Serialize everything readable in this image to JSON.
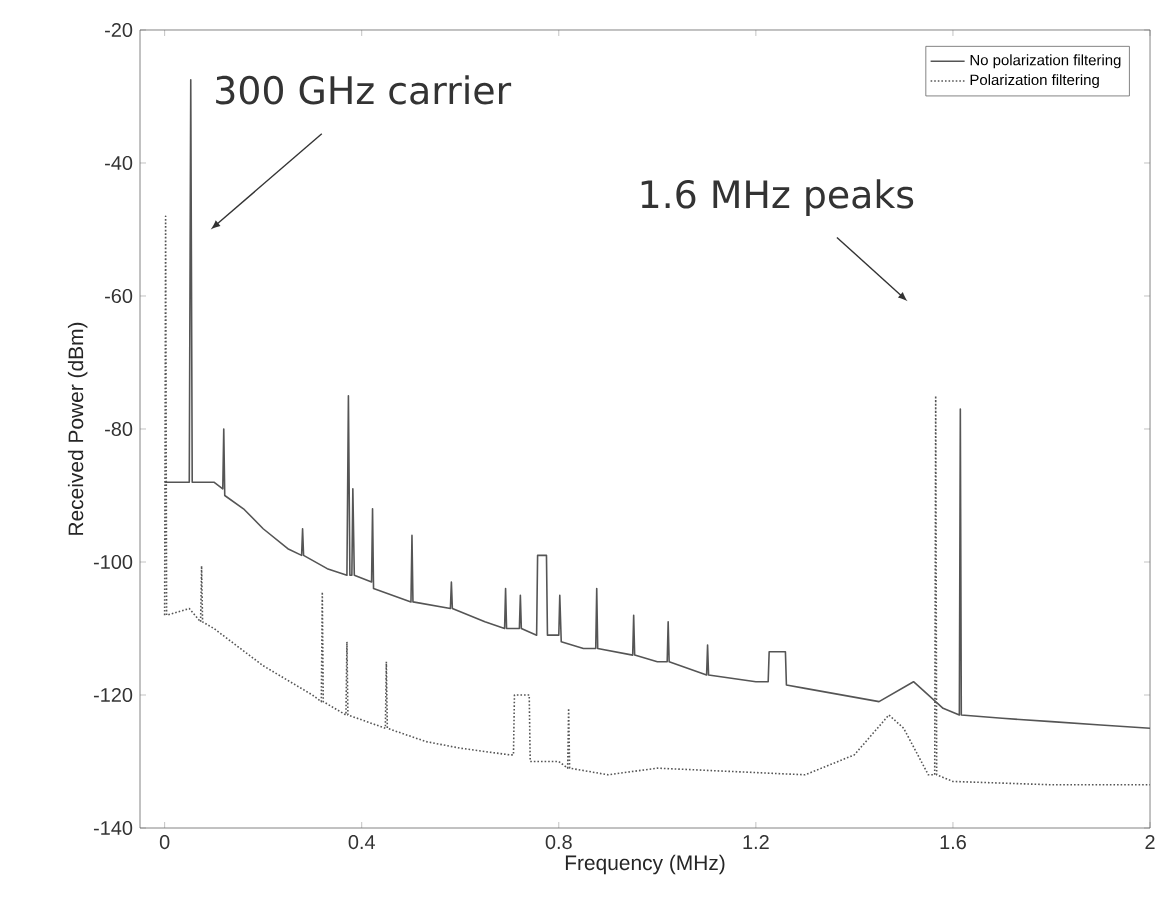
{
  "chart_data": {
    "type": "line",
    "xlabel": "Frequency (MHz)",
    "ylabel": "Received Power (dBm)",
    "xlim": [
      -0.05,
      2
    ],
    "ylim": [
      -140,
      -20
    ],
    "xticks": [
      0,
      0.4,
      0.8,
      1.2,
      1.6,
      2
    ],
    "yticks": [
      -140,
      -120,
      -100,
      -80,
      -60,
      -40,
      -20
    ],
    "grid": false,
    "legend": "top right",
    "marker": "none",
    "series": [
      {
        "name": "No polarization filtering",
        "color": "#555555",
        "line_style": "solid",
        "x": [
          0.0,
          0.05,
          0.053,
          0.056,
          0.1,
          0.118,
          0.12,
          0.122,
          0.16,
          0.2,
          0.25,
          0.278,
          0.28,
          0.282,
          0.33,
          0.37,
          0.373,
          0.376,
          0.38,
          0.382,
          0.385,
          0.42,
          0.422,
          0.424,
          0.5,
          0.502,
          0.504,
          0.58,
          0.582,
          0.584,
          0.65,
          0.69,
          0.692,
          0.694,
          0.72,
          0.722,
          0.724,
          0.755,
          0.757,
          0.775,
          0.777,
          0.8,
          0.802,
          0.805,
          0.85,
          0.875,
          0.877,
          0.879,
          0.95,
          0.952,
          0.954,
          1.0,
          1.02,
          1.022,
          1.024,
          1.1,
          1.102,
          1.104,
          1.2,
          1.225,
          1.227,
          1.26,
          1.262,
          1.3,
          1.45,
          1.52,
          1.58,
          1.613,
          1.615,
          1.617,
          1.7,
          1.8,
          1.9,
          2.0
        ],
        "values": [
          -88,
          -88,
          -27.5,
          -88,
          -88,
          -89,
          -80,
          -90,
          -92,
          -95,
          -98,
          -99,
          -95,
          -99,
          -101,
          -102,
          -75,
          -102,
          -102,
          -89,
          -102,
          -103,
          -92,
          -104,
          -106,
          -96,
          -106,
          -107,
          -103,
          -107,
          -109,
          -110,
          -104,
          -110,
          -110,
          -105,
          -110,
          -111,
          -99,
          -99,
          -111,
          -111,
          -105,
          -112,
          -113,
          -113,
          -104,
          -113,
          -114,
          -108,
          -114,
          -115,
          -115,
          -109,
          -115,
          -117,
          -112.5,
          -117,
          -118,
          -118,
          -113.5,
          -113.5,
          -118.5,
          -119,
          -121,
          -118,
          -122,
          -123,
          -77,
          -123,
          -123.5,
          -124,
          -124.5,
          -125
        ]
      },
      {
        "name": "Polarization filtering",
        "color": "#555555",
        "line_style": "dotted",
        "x": [
          0.0,
          0.002,
          0.004,
          0.05,
          0.073,
          0.075,
          0.077,
          0.1,
          0.2,
          0.3,
          0.318,
          0.32,
          0.322,
          0.368,
          0.37,
          0.372,
          0.448,
          0.45,
          0.452,
          0.53,
          0.6,
          0.7,
          0.708,
          0.71,
          0.74,
          0.742,
          0.8,
          0.818,
          0.82,
          0.822,
          0.9,
          1.0,
          1.3,
          1.4,
          1.47,
          1.5,
          1.55,
          1.563,
          1.565,
          1.567,
          1.6,
          1.8,
          2.0
        ],
        "values": [
          -108,
          -48,
          -108,
          -107,
          -109,
          -100.6,
          -109,
          -110,
          -115.6,
          -120,
          -121,
          -104.5,
          -121,
          -123,
          -112,
          -123,
          -125,
          -115,
          -125,
          -127,
          -128,
          -129,
          -129,
          -120,
          -120,
          -130,
          -130,
          -131,
          -122,
          -131,
          -132,
          -131,
          -132,
          -129,
          -123,
          -125,
          -132,
          -132,
          -75,
          -132,
          -133,
          -133.5,
          -133.5
        ]
      }
    ],
    "annotations": [
      "300 GHz carrier",
      "1.6 MHz peaks"
    ]
  }
}
